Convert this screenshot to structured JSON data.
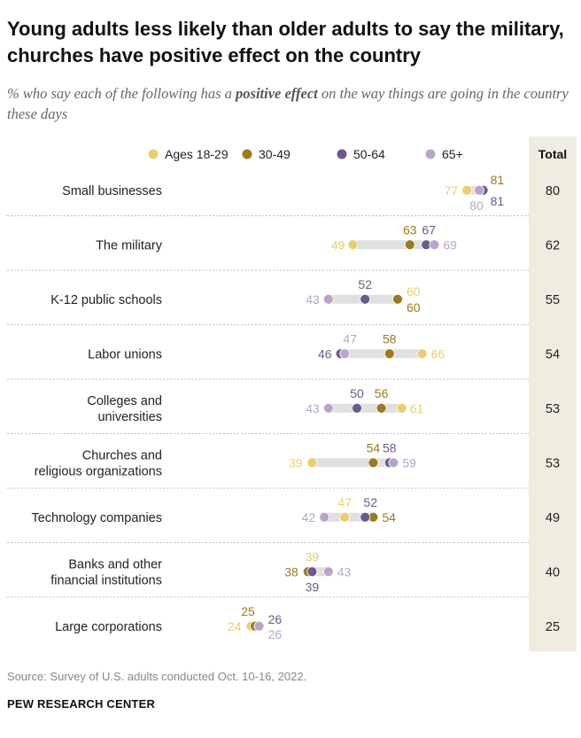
{
  "title": "Young adults less likely than older adults to say the military, churches have positive effect on the country",
  "subtitle_pre": "% who say each of the following has a ",
  "subtitle_em": "positive effect",
  "subtitle_post": " on the way things are going in the country these days",
  "total_header": "Total",
  "source": "Source: Survey of U.S. adults conducted Oct. 10-16, 2022.",
  "org": "PEW RESEARCH CENTER",
  "colors": {
    "a18_29": "#e8cf6e",
    "a30_49": "#9c7a1e",
    "a50_64": "#6b5a8c",
    "a65p": "#b7a6c9",
    "range_bar": "#e0e0e0",
    "total_bg": "#efeddf",
    "divider": "#bdbdbd"
  },
  "chart_data": {
    "type": "dot",
    "series": [
      {
        "name": "Ages 18-29",
        "key": "a18_29"
      },
      {
        "name": "30-49",
        "key": "a30_49"
      },
      {
        "name": "50-64",
        "key": "a50_64"
      },
      {
        "name": "65+",
        "key": "a65p"
      }
    ],
    "categories": [
      {
        "label": [
          "Small businesses"
        ],
        "a18_29": 77,
        "a30_49": 81,
        "a50_64": 81,
        "a65p": 80,
        "total": 80
      },
      {
        "label": [
          "The military"
        ],
        "a18_29": 49,
        "a30_49": 63,
        "a50_64": 67,
        "a65p": 69,
        "total": 62
      },
      {
        "label": [
          "K-12 public schools"
        ],
        "a18_29": 60,
        "a30_49": 60,
        "a50_64": 52,
        "a65p": 43,
        "total": 55
      },
      {
        "label": [
          "Labor unions"
        ],
        "a18_29": 66,
        "a30_49": 58,
        "a50_64": 46,
        "a65p": 47,
        "total": 54
      },
      {
        "label": [
          "Colleges and",
          "universities"
        ],
        "a18_29": 61,
        "a30_49": 56,
        "a50_64": 50,
        "a65p": 43,
        "total": 53
      },
      {
        "label": [
          "Churches and",
          "religious organizations"
        ],
        "a18_29": 39,
        "a30_49": 54,
        "a50_64": 58,
        "a65p": 59,
        "total": 53
      },
      {
        "label": [
          "Technology companies"
        ],
        "a18_29": 47,
        "a30_49": 54,
        "a50_64": 52,
        "a65p": 42,
        "total": 49
      },
      {
        "label": [
          "Banks and other",
          "financial institutions"
        ],
        "a18_29": 39,
        "a30_49": 38,
        "a50_64": 39,
        "a65p": 43,
        "total": 40
      },
      {
        "label": [
          "Large corporations"
        ],
        "a18_29": 24,
        "a30_49": 25,
        "a50_64": 26,
        "a65p": 26,
        "total": 25
      }
    ]
  }
}
